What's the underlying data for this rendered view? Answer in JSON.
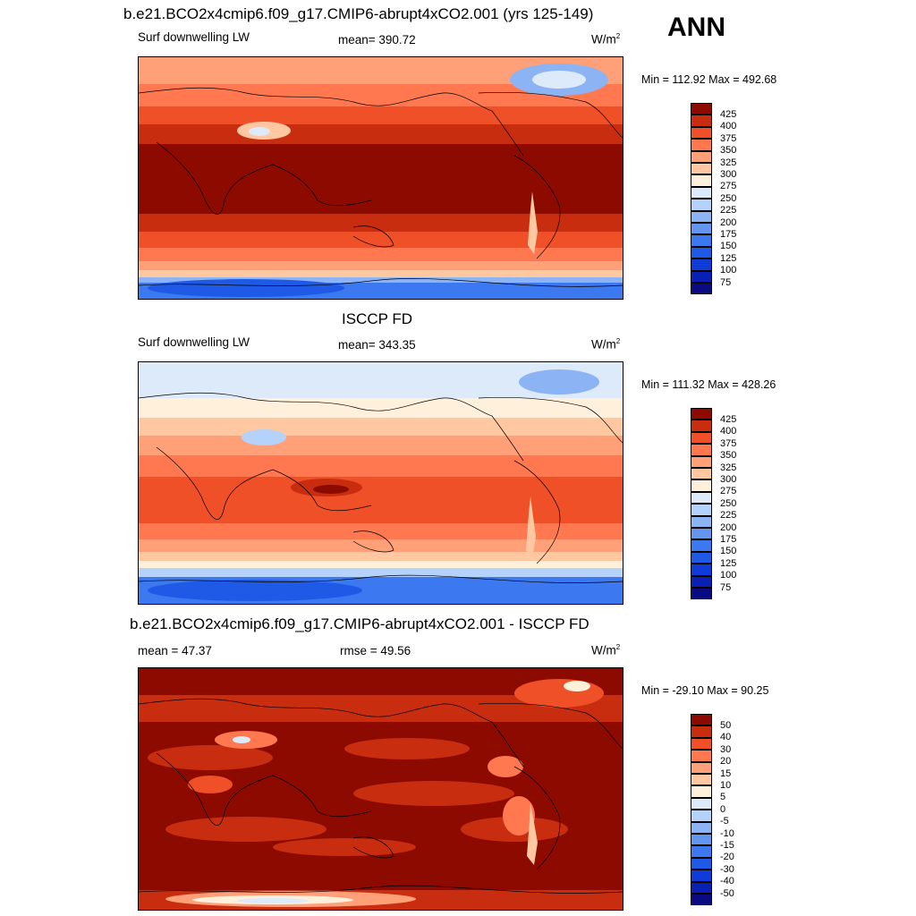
{
  "season": "ANN",
  "panels": [
    {
      "title": "b.e21.BCO2x4cmip6.f09_g17.CMIP6-abrupt4xCO2.001 (yrs 125-149)",
      "left_label": "Surf downwelling LW",
      "center_label": "mean= 390.72",
      "units": "W/m",
      "units_sup": "2",
      "minmax": "Min = 112.92 Max = 492.68"
    },
    {
      "title": "ISCCP FD",
      "left_label": "Surf downwelling LW",
      "center_label": "mean= 343.35",
      "units": "W/m",
      "units_sup": "2",
      "minmax": "Min = 111.32 Max = 428.26"
    },
    {
      "title": "b.e21.BCO2x4cmip6.f09_g17.CMIP6-abrupt4xCO2.001 - ISCCP FD",
      "left_label": "mean =  47.37",
      "center_label": "rmse =  49.56",
      "units": "W/m",
      "units_sup": "2",
      "minmax": "Min = -29.10 Max =  90.25"
    }
  ],
  "chart_data": [
    {
      "type": "heatmap",
      "title": "b.e21.BCO2x4cmip6.f09_g17.CMIP6-abrupt4xCO2.001 (yrs 125-149)",
      "variable": "Surf downwelling LW",
      "units": "W/m2",
      "mean": 390.72,
      "min": 112.92,
      "max": 492.68,
      "colorbar_levels": [
        75,
        100,
        125,
        150,
        175,
        200,
        225,
        250,
        275,
        300,
        325,
        350,
        375,
        400,
        425
      ],
      "colorbar_colors": [
        "#0a0a82",
        "#0a1fb4",
        "#0f3cd8",
        "#1f5ae6",
        "#3c78f0",
        "#6496f0",
        "#8cb4f5",
        "#b4d2fa",
        "#dceafa",
        "#fff0dc",
        "#ffc8a0",
        "#ffa078",
        "#ff7850",
        "#f05028",
        "#c82d10",
        "#8c0a00"
      ]
    },
    {
      "type": "heatmap",
      "title": "ISCCP FD",
      "variable": "Surf downwelling LW",
      "units": "W/m2",
      "mean": 343.35,
      "min": 111.32,
      "max": 428.26,
      "colorbar_levels": [
        75,
        100,
        125,
        150,
        175,
        200,
        225,
        250,
        275,
        300,
        325,
        350,
        375,
        400,
        425
      ],
      "colorbar_colors": [
        "#0a0a82",
        "#0a1fb4",
        "#0f3cd8",
        "#1f5ae6",
        "#3c78f0",
        "#6496f0",
        "#8cb4f5",
        "#b4d2fa",
        "#dceafa",
        "#fff0dc",
        "#ffc8a0",
        "#ffa078",
        "#ff7850",
        "#f05028",
        "#c82d10",
        "#8c0a00"
      ]
    },
    {
      "type": "heatmap",
      "title": "b.e21.BCO2x4cmip6.f09_g17.CMIP6-abrupt4xCO2.001 - ISCCP FD",
      "units": "W/m2",
      "mean": 47.37,
      "rmse": 49.56,
      "min": -29.1,
      "max": 90.25,
      "colorbar_levels": [
        -50,
        -40,
        -30,
        -20,
        -15,
        -10,
        -5,
        0,
        5,
        10,
        15,
        20,
        30,
        40,
        50
      ],
      "colorbar_colors": [
        "#0a0a82",
        "#0a1fb4",
        "#0f3cd8",
        "#1f5ae6",
        "#3c78f0",
        "#6496f0",
        "#8cb4f5",
        "#b4d2fa",
        "#dceafa",
        "#fff0dc",
        "#ffc8a0",
        "#ffa078",
        "#ff7850",
        "#f05028",
        "#c82d10",
        "#8c0a00"
      ]
    }
  ]
}
